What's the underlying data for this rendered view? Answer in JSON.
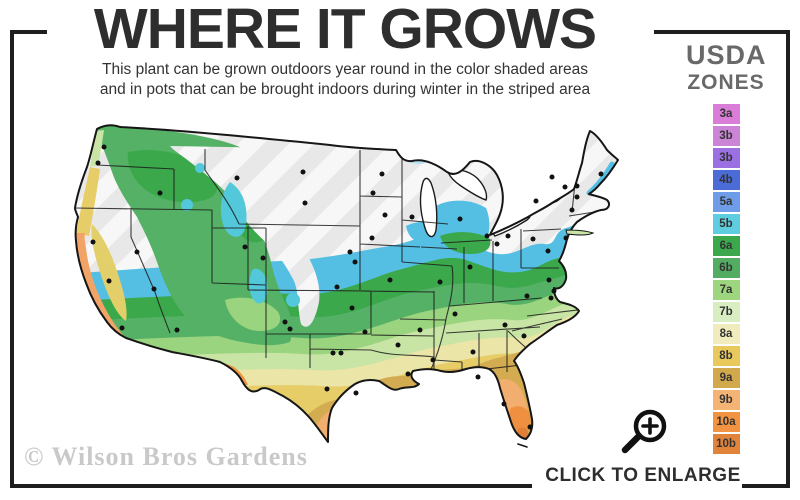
{
  "header": {
    "title": "WHERE IT GROWS",
    "subtitle_line1": "This plant can be grown outdoors year round in the color shaded areas",
    "subtitle_line2": "and in pots that can be brought indoors during winter in the striped area"
  },
  "legend": {
    "title_line1": "USDA",
    "title_line2": "ZONES",
    "zones": [
      {
        "label": "3a",
        "color": "#d97dd9"
      },
      {
        "label": "3b",
        "color": "#cb84d6"
      },
      {
        "label": "3b",
        "color": "#9a70e3"
      },
      {
        "label": "4b",
        "color": "#4b6cd6"
      },
      {
        "label": "5a",
        "color": "#6f9ce8"
      },
      {
        "label": "5b",
        "color": "#5ecddf"
      },
      {
        "label": "6a",
        "color": "#3aa84b"
      },
      {
        "label": "6b",
        "color": "#52ad62"
      },
      {
        "label": "7a",
        "color": "#9ed57f"
      },
      {
        "label": "7b",
        "color": "#d9edc3"
      },
      {
        "label": "8a",
        "color": "#f0ecbd"
      },
      {
        "label": "8b",
        "color": "#e9c95c"
      },
      {
        "label": "9a",
        "color": "#d2a84c"
      },
      {
        "label": "9b",
        "color": "#f4b475"
      },
      {
        "label": "10a",
        "color": "#f19340"
      },
      {
        "label": "10b",
        "color": "#e0843c"
      }
    ]
  },
  "map": {
    "zone_colors": {
      "stripe_bg": "#f7f7f7",
      "stripe_fg": "#e8e8e8",
      "z5b": "#54bfe3",
      "z6a": "#3aa84b",
      "z6b": "#55b165",
      "z7a": "#9ad47f",
      "z7b": "#c9e5a5",
      "z8a": "#ebe5a8",
      "z8b": "#e6cd68",
      "z9a": "#d3ac52",
      "z9b": "#f2ae6e",
      "z10a": "#ee9040",
      "z10b": "#e07f38",
      "cyan": "#52c8da",
      "valley": "#e2cf6a",
      "coast": "#f2a466",
      "desert": "#ef9440",
      "lake": "#ffffff",
      "superior": "#b8dff0"
    }
  },
  "footer": {
    "watermark": "© Wilson Bros Gardens",
    "enlarge_label": "CLICK TO ENLARGE"
  }
}
